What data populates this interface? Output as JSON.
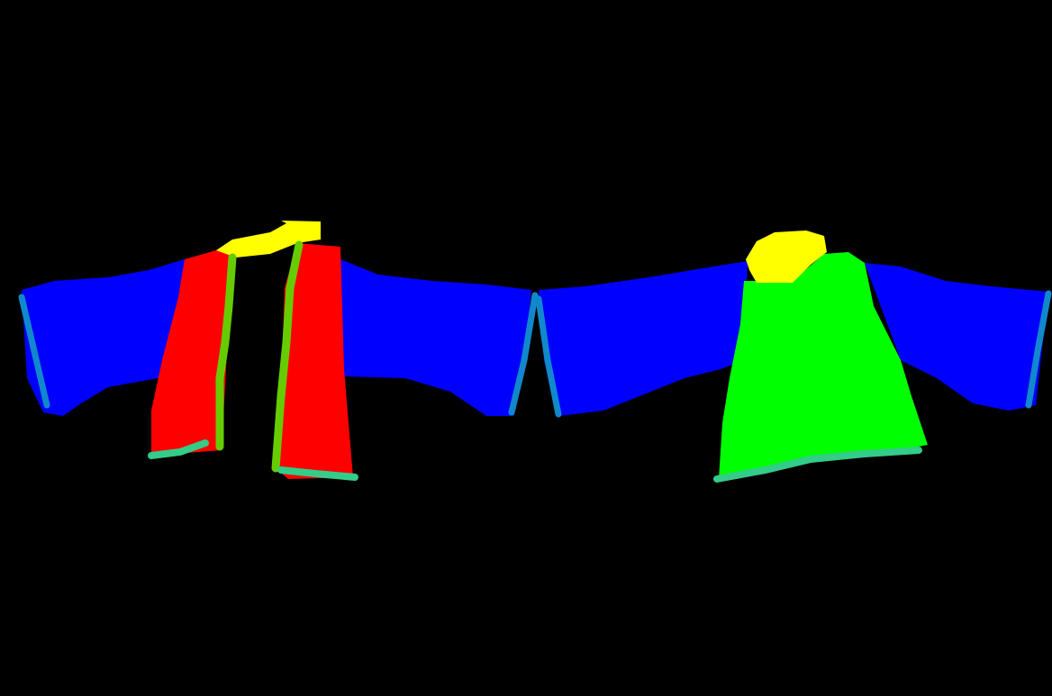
{
  "colors": {
    "background": "#000000",
    "sleeve": "#0000ff",
    "sleeve_cuff": "#1188cc",
    "front_panel": "#ff0000",
    "back_body": "#00ff00",
    "collar": "#ffff00",
    "placket_edge": "#66cc00",
    "hem": "#33cc88"
  },
  "garments": [
    {
      "view": "front",
      "parts": [
        "left-sleeve",
        "right-sleeve",
        "left-front-panel",
        "right-front-panel",
        "collar",
        "left-placket-edge",
        "right-placket-edge",
        "left-hem",
        "right-hem",
        "left-cuff",
        "right-cuff"
      ]
    },
    {
      "view": "back",
      "parts": [
        "left-sleeve",
        "right-sleeve",
        "back-body",
        "collar",
        "hem",
        "left-cuff",
        "right-cuff"
      ]
    }
  ]
}
